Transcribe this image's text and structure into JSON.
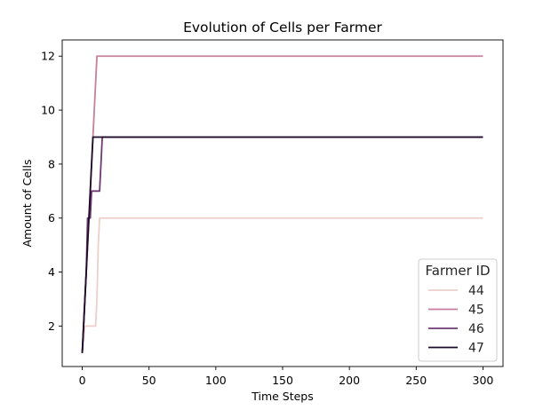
{
  "chart_data": {
    "type": "line",
    "title": "Evolution of Cells per Farmer",
    "xlabel": "Time Steps",
    "ylabel": "Amount of Cells",
    "xlim": [
      -15,
      315
    ],
    "ylim": [
      0.5,
      12.6
    ],
    "xticks": [
      0,
      50,
      100,
      150,
      200,
      250,
      300
    ],
    "yticks": [
      2,
      4,
      6,
      8,
      10,
      12
    ],
    "grid": false,
    "legend": {
      "title": "Farmer ID",
      "placement": "bottom-right"
    },
    "series": [
      {
        "name": "44",
        "color": "#ebcfc9",
        "x": [
          0,
          2,
          3,
          4,
          5,
          6,
          7,
          8,
          9,
          10,
          11,
          12,
          13,
          300
        ],
        "y": [
          1,
          2,
          2,
          2,
          2,
          2,
          2,
          2,
          2,
          2,
          3,
          5,
          6,
          6
        ]
      },
      {
        "name": "45",
        "color": "#c97f9c",
        "x": [
          0,
          2,
          4,
          6,
          8,
          10,
          11,
          300
        ],
        "y": [
          1,
          3,
          5,
          7,
          9,
          11,
          12,
          12
        ]
      },
      {
        "name": "46",
        "color": "#6f3a72",
        "x": [
          0,
          2,
          3,
          4,
          5,
          6,
          7,
          8,
          9,
          10,
          11,
          12,
          13,
          14,
          15,
          300
        ],
        "y": [
          1,
          3,
          4,
          6,
          6,
          6,
          7,
          7,
          7,
          7,
          7,
          7,
          7,
          8,
          9,
          9
        ]
      },
      {
        "name": "47",
        "color": "#1c0c2a",
        "x": [
          0,
          2,
          4,
          6,
          8,
          300
        ],
        "y": [
          1,
          3,
          5,
          7,
          9,
          9
        ]
      }
    ]
  }
}
